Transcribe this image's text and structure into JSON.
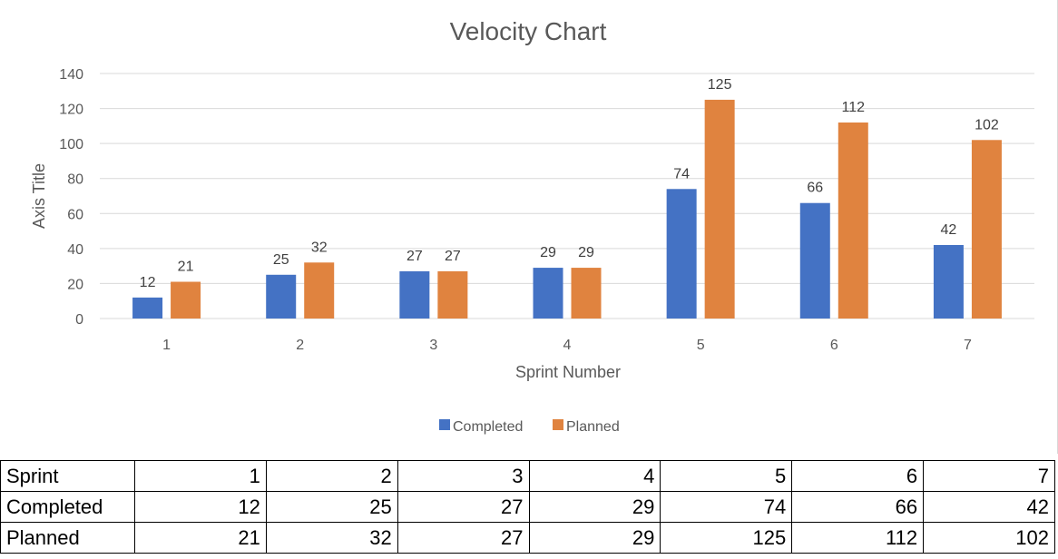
{
  "chart_data": {
    "type": "bar",
    "title": "Velocity Chart",
    "xlabel": "Sprint Number",
    "ylabel": "Axis Title",
    "categories": [
      "1",
      "2",
      "3",
      "4",
      "5",
      "6",
      "7"
    ],
    "series": [
      {
        "name": "Completed",
        "color": "#4472C4",
        "values": [
          12,
          25,
          27,
          29,
          74,
          66,
          42
        ]
      },
      {
        "name": "Planned",
        "color": "#E0833F",
        "values": [
          21,
          32,
          27,
          29,
          125,
          112,
          102
        ]
      }
    ],
    "ylim": [
      0,
      140
    ],
    "yticks": [
      "0",
      "20",
      "40",
      "60",
      "80",
      "100",
      "120",
      "140"
    ],
    "grid": true,
    "legend_position": "bottom",
    "data_labels": true
  },
  "table": {
    "rows": [
      {
        "label": "Sprint",
        "values": [
          "1",
          "2",
          "3",
          "4",
          "5",
          "6",
          "7"
        ]
      },
      {
        "label": "Completed",
        "values": [
          "12",
          "25",
          "27",
          "29",
          "74",
          "66",
          "42"
        ]
      },
      {
        "label": "Planned",
        "values": [
          "21",
          "32",
          "27",
          "29",
          "125",
          "112",
          "102"
        ]
      }
    ]
  }
}
